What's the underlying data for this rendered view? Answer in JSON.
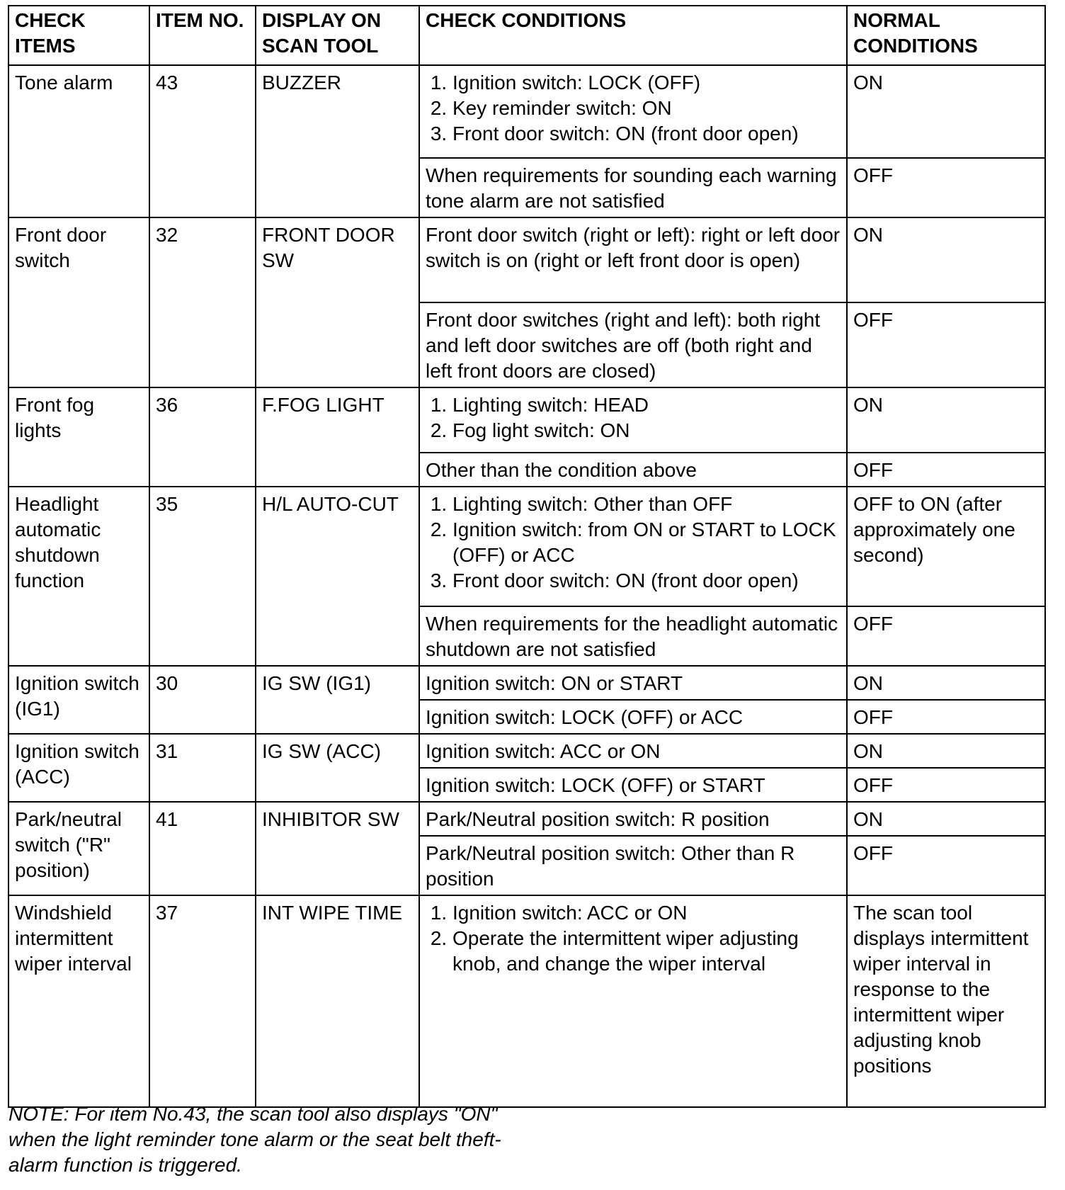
{
  "headers": [
    "CHECK ITEMS",
    "ITEM NO.",
    "DISPLAY ON SCAN TOOL",
    "CHECK CONDITIONS",
    "NORMAL CONDITIONS"
  ],
  "rows": [
    {
      "item": "Tone alarm",
      "no": "43",
      "display": "BUZZER",
      "conditions": [
        {
          "list": [
            "Ignition switch: LOCK (OFF)",
            "Key reminder switch: ON",
            "Front door switch: ON (front door open)"
          ],
          "normal": "ON"
        },
        {
          "text": "When requirements for sounding each warning tone alarm are not satisfied",
          "normal": "OFF"
        }
      ]
    },
    {
      "item": "Front door switch",
      "no": "32",
      "display": "FRONT DOOR SW",
      "conditions": [
        {
          "text": "Front door switch (right or left): right or left door switch is on (right or left front door is open)",
          "normal": "ON"
        },
        {
          "text": "Front door switches (right and left): both right and left door switches are off (both right and left front doors are closed)",
          "normal": "OFF"
        }
      ]
    },
    {
      "item": "Front fog lights",
      "no": "36",
      "display": "F.FOG LIGHT",
      "conditions": [
        {
          "list": [
            "Lighting switch: HEAD",
            "Fog light switch: ON"
          ],
          "normal": "ON"
        },
        {
          "text": "Other than the condition above",
          "normal": "OFF"
        }
      ]
    },
    {
      "item": "Headlight automatic shutdown function",
      "no": "35",
      "display": "H/L AUTO-CUT",
      "conditions": [
        {
          "list": [
            "Lighting switch: Other than OFF",
            "Ignition switch: from ON or START to LOCK (OFF) or ACC",
            "Front door switch: ON (front door open)"
          ],
          "normal": "OFF to ON (after approximately one second)"
        },
        {
          "text": "When requirements for the headlight automatic shutdown are not satisfied",
          "normal": "OFF"
        }
      ]
    },
    {
      "item": "Ignition switch (IG1)",
      "no": "30",
      "display": "IG SW (IG1)",
      "conditions": [
        {
          "text": "Ignition switch: ON or START",
          "normal": "ON"
        },
        {
          "text": "Ignition switch: LOCK (OFF) or ACC",
          "normal": "OFF"
        }
      ]
    },
    {
      "item": "Ignition switch (ACC)",
      "no": "31",
      "display": "IG SW (ACC)",
      "conditions": [
        {
          "text": "Ignition switch: ACC or ON",
          "normal": "ON"
        },
        {
          "text": "Ignition switch: LOCK (OFF) or START",
          "normal": "OFF"
        }
      ]
    },
    {
      "item": "Park/neutral switch (\"R\" position)",
      "no": "41",
      "display": "INHIBITOR SW",
      "conditions": [
        {
          "text": "Park/Neutral position switch: R position",
          "normal": "ON"
        },
        {
          "text": "Park/Neutral position switch: Other than R position",
          "normal": "OFF"
        }
      ]
    },
    {
      "item": "Windshield intermittent wiper interval",
      "no": "37",
      "display": "INT WIPE TIME",
      "conditions": [
        {
          "list": [
            "Ignition switch: ACC or ON",
            "Operate the intermittent wiper adjusting knob, and change the wiper interval"
          ],
          "normal": "The scan tool displays intermittent wiper interval in response to the intermittent wiper adjusting knob positions"
        }
      ]
    }
  ],
  "note": "NOTE:  For item No.43, the scan tool also displays \"ON\" when the light reminder tone alarm or the seat belt theft-alarm function is triggered."
}
